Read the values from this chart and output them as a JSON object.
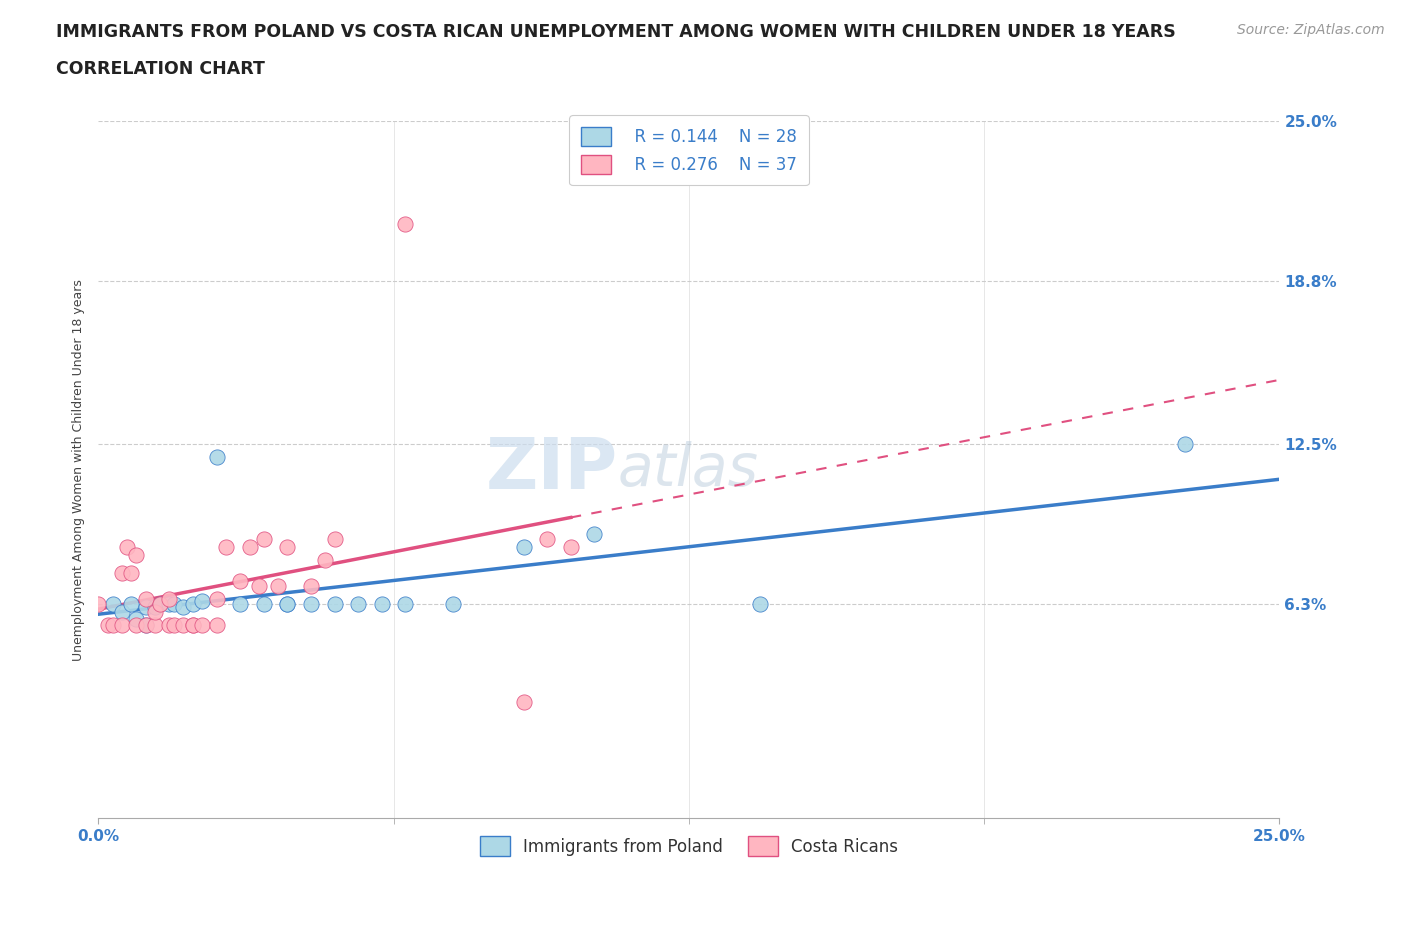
{
  "title_line1": "IMMIGRANTS FROM POLAND VS COSTA RICAN UNEMPLOYMENT AMONG WOMEN WITH CHILDREN UNDER 18 YEARS",
  "title_line2": "CORRELATION CHART",
  "source": "Source: ZipAtlas.com",
  "ylabel": "Unemployment Among Women with Children Under 18 years",
  "xmin": 0.0,
  "xmax": 0.25,
  "ymin": -0.02,
  "ymax": 0.25,
  "ytick_vals": [
    0.0,
    0.063,
    0.125,
    0.188,
    0.25
  ],
  "ytick_labels_right": [
    "",
    "6.3%",
    "12.5%",
    "18.8%",
    "25.0%"
  ],
  "xtick_positions": [
    0.0,
    0.25
  ],
  "xtick_labels": [
    "0.0%",
    "25.0%"
  ],
  "legend_R1": "R = 0.144",
  "legend_N1": "N = 28",
  "legend_R2": "R = 0.276",
  "legend_N2": "N = 37",
  "scatter_blue_color": "#ADD8E6",
  "scatter_pink_color": "#FFB6C1",
  "trendline_blue_color": "#3A7DC9",
  "trendline_pink_color": "#E05080",
  "watermark_zip": "ZIP",
  "watermark_atlas": "atlas",
  "blue_points_x": [
    0.003,
    0.005,
    0.007,
    0.008,
    0.01,
    0.01,
    0.012,
    0.013,
    0.015,
    0.016,
    0.018,
    0.02,
    0.022,
    0.025,
    0.03,
    0.035,
    0.04,
    0.04,
    0.045,
    0.05,
    0.055,
    0.06,
    0.065,
    0.075,
    0.09,
    0.105,
    0.14,
    0.23
  ],
  "blue_points_y": [
    0.063,
    0.06,
    0.063,
    0.057,
    0.062,
    0.055,
    0.062,
    0.063,
    0.063,
    0.063,
    0.062,
    0.063,
    0.064,
    0.12,
    0.063,
    0.063,
    0.063,
    0.063,
    0.063,
    0.063,
    0.063,
    0.063,
    0.063,
    0.063,
    0.085,
    0.09,
    0.063,
    0.125
  ],
  "pink_points_x": [
    0.0,
    0.002,
    0.003,
    0.005,
    0.005,
    0.006,
    0.007,
    0.008,
    0.008,
    0.01,
    0.01,
    0.012,
    0.012,
    0.013,
    0.015,
    0.015,
    0.016,
    0.018,
    0.02,
    0.02,
    0.022,
    0.025,
    0.025,
    0.027,
    0.03,
    0.032,
    0.034,
    0.035,
    0.038,
    0.04,
    0.045,
    0.048,
    0.05,
    0.065,
    0.09,
    0.095,
    0.1
  ],
  "pink_points_y": [
    0.063,
    0.055,
    0.055,
    0.055,
    0.075,
    0.085,
    0.075,
    0.082,
    0.055,
    0.065,
    0.055,
    0.055,
    0.06,
    0.063,
    0.065,
    0.055,
    0.055,
    0.055,
    0.055,
    0.055,
    0.055,
    0.055,
    0.065,
    0.085,
    0.072,
    0.085,
    0.07,
    0.088,
    0.07,
    0.085,
    0.07,
    0.08,
    0.088,
    0.21,
    0.025,
    0.088,
    0.085
  ],
  "title_fontsize": 12.5,
  "subtitle_fontsize": 12.5,
  "axis_label_fontsize": 9,
  "tick_label_fontsize": 11,
  "legend_fontsize": 12,
  "source_fontsize": 10,
  "watermark_fontsize_zip": 52,
  "watermark_fontsize_atlas": 42,
  "background_color": "#FFFFFF",
  "grid_color": "#CCCCCC",
  "title_color": "#222222",
  "axis_label_color": "#444444",
  "tick_color": "#3A7DC9",
  "legend_text_color": "#3A7DC9",
  "bottom_legend_color": "#333333"
}
